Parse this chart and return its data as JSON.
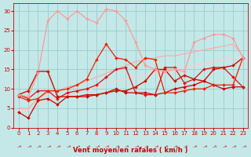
{
  "xlabel": "Vent moyen/en rafales ( km/h )",
  "xlim": [
    -0.5,
    23.5
  ],
  "ylim": [
    0,
    32
  ],
  "yticks": [
    0,
    5,
    10,
    15,
    20,
    25,
    30
  ],
  "xticks": [
    0,
    1,
    2,
    3,
    4,
    5,
    6,
    7,
    8,
    9,
    10,
    11,
    12,
    13,
    14,
    15,
    16,
    17,
    18,
    19,
    20,
    21,
    22,
    23
  ],
  "bg_color": "#c4e8e8",
  "grid_color": "#99cccc",
  "lines": [
    {
      "x": [
        0,
        1,
        2,
        3,
        4,
        5,
        6,
        7,
        8,
        9,
        10,
        11,
        12,
        13,
        14,
        15,
        16,
        17,
        18,
        19,
        20,
        21,
        22,
        23
      ],
      "y": [
        4,
        2.5,
        7,
        7.5,
        6,
        8,
        8,
        8,
        8.5,
        9,
        10,
        9,
        9,
        9,
        8.5,
        9,
        10,
        10.5,
        11,
        12,
        11,
        10,
        10.5,
        10.5
      ],
      "color": "#cc0000",
      "lw": 0.9,
      "marker": "D",
      "ms": 2.0
    },
    {
      "x": [
        0,
        1,
        2,
        3,
        4,
        5,
        6,
        7,
        8,
        9,
        10,
        11,
        12,
        13,
        14,
        15,
        16,
        17,
        18,
        19,
        20,
        21,
        22,
        23
      ],
      "y": [
        8.5,
        7.5,
        9.5,
        9.5,
        7.5,
        9,
        9.5,
        10,
        11,
        13,
        15,
        15.5,
        9,
        8.5,
        8.5,
        15.5,
        15.5,
        11.5,
        12.5,
        15,
        15.5,
        15.5,
        13,
        10.5
      ],
      "color": "#dd1111",
      "lw": 0.9,
      "marker": "D",
      "ms": 2.0
    },
    {
      "x": [
        0,
        1,
        2,
        3,
        4,
        5,
        6,
        7,
        8,
        9,
        10,
        11,
        12,
        13,
        14,
        15,
        16,
        17,
        18,
        19,
        20,
        21,
        22,
        23
      ],
      "y": [
        8,
        7,
        7.5,
        9.5,
        9.5,
        10,
        11,
        12.5,
        17.5,
        21.5,
        18,
        17.5,
        15.5,
        18,
        17.5,
        9,
        9,
        9.5,
        10,
        10,
        11,
        11,
        11,
        18
      ],
      "color": "#ee2200",
      "lw": 0.9,
      "marker": "D",
      "ms": 2.0
    },
    {
      "x": [
        0,
        1,
        2,
        3,
        4,
        5,
        6,
        7,
        8,
        9,
        10,
        11,
        12,
        13,
        14,
        15,
        16,
        17,
        18,
        19,
        20,
        21,
        22,
        23
      ],
      "y": [
        8.5,
        9.5,
        14.5,
        14.5,
        8,
        8,
        8,
        8.5,
        8.5,
        9,
        9.5,
        9.5,
        10.5,
        12,
        15,
        15,
        12,
        13.5,
        12.5,
        12,
        15,
        15.5,
        16,
        18
      ],
      "color": "#cc1100",
      "lw": 1.0,
      "marker": "D",
      "ms": 2.0
    },
    {
      "x": [
        0,
        1,
        2,
        3,
        4,
        5,
        6,
        7,
        8,
        9,
        10,
        11,
        12,
        13,
        14,
        15,
        16,
        17,
        18,
        19,
        20,
        21,
        22,
        23
      ],
      "y": [
        8.5,
        8,
        14,
        27.5,
        30,
        28,
        30,
        28,
        27,
        30.5,
        30,
        27.5,
        22,
        16,
        15,
        14.5,
        15,
        14.5,
        22,
        23,
        24,
        24,
        23,
        18
      ],
      "color": "#ff9999",
      "lw": 0.9,
      "marker": "D",
      "ms": 2.0
    },
    {
      "x": [
        0,
        1,
        2,
        3,
        4,
        5,
        6,
        7,
        8,
        9,
        10,
        11,
        12,
        13,
        14,
        15,
        16,
        17,
        18,
        19,
        20,
        21,
        22,
        23
      ],
      "y": [
        5,
        5,
        7.5,
        9,
        9.5,
        10.5,
        11,
        12,
        13,
        14,
        15,
        16,
        17,
        17.5,
        18,
        18.5,
        18.5,
        19,
        19.5,
        20,
        20.5,
        21,
        21.5,
        18.5
      ],
      "color": "#ffaaaa",
      "lw": 0.9,
      "marker": null,
      "ms": 0
    },
    {
      "x": [
        0,
        1,
        2,
        3,
        4,
        5,
        6,
        7,
        8,
        9,
        10,
        11,
        12,
        13,
        14,
        15,
        16,
        17,
        18,
        19,
        20,
        21,
        22,
        23
      ],
      "y": [
        4.5,
        4.5,
        6,
        7,
        7.5,
        8.5,
        9,
        9.5,
        10.5,
        11.5,
        12,
        12.5,
        13,
        13.5,
        14,
        14.5,
        15,
        15.5,
        16,
        16.5,
        17,
        17.5,
        18,
        16
      ],
      "color": "#ffcccc",
      "lw": 0.9,
      "marker": null,
      "ms": 0
    }
  ],
  "tick_fontsize": 5.0,
  "label_fontsize": 6.0,
  "tick_color": "#cc0000",
  "spine_color": "#cc0000"
}
